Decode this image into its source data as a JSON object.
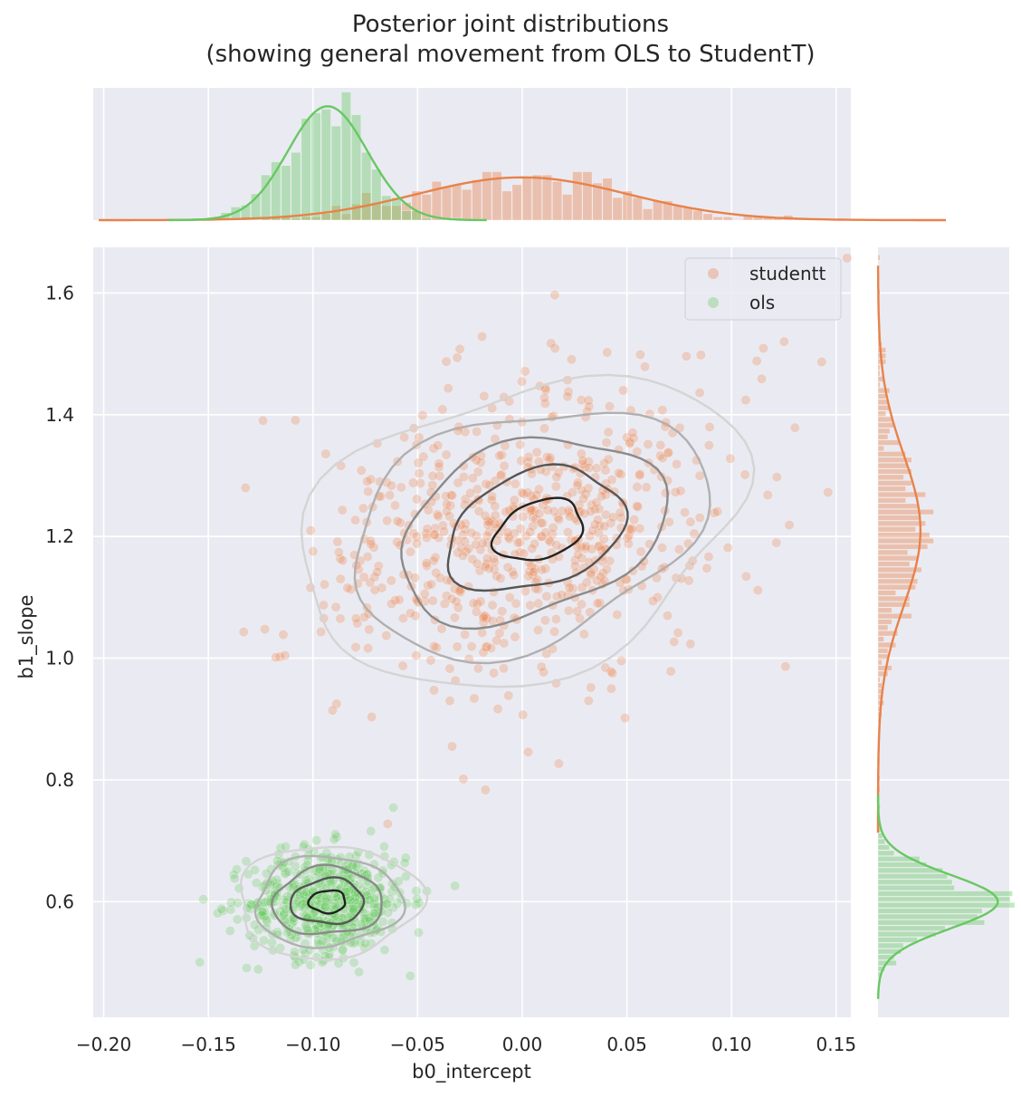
{
  "chart_data": {
    "type": "scatter",
    "title": "Posterior joint distributions\n(showing general movement from OLS to StudentT)",
    "xlabel": "b0_intercept",
    "ylabel": "b1_slope",
    "xlim": [
      -0.205,
      0.157
    ],
    "ylim": [
      0.41,
      1.675
    ],
    "xticks": [
      -0.2,
      -0.15,
      -0.1,
      -0.05,
      0.0,
      0.05,
      0.1,
      0.15
    ],
    "xtick_labels": [
      "−0.20",
      "−0.15",
      "−0.10",
      "−0.05",
      "0.00",
      "0.05",
      "0.10",
      "0.15"
    ],
    "yticks": [
      0.6,
      0.8,
      1.0,
      1.2,
      1.4,
      1.6
    ],
    "ytick_labels": [
      "0.6",
      "0.8",
      "1.0",
      "1.2",
      "1.4",
      "1.6"
    ],
    "grid": true,
    "legend_position": "top-right",
    "marginals": "histogram with kde on top (x) and right (y)",
    "series": [
      {
        "name": "studentt",
        "color": "#e8824a",
        "x_mean": 0.0,
        "x_sd": 0.046,
        "y_mean": 1.21,
        "y_sd": 0.115,
        "n_points": 700,
        "contour_levels": 5
      },
      {
        "name": "ols",
        "color": "#67c862",
        "x_mean": -0.093,
        "x_sd": 0.019,
        "y_mean": 0.6,
        "y_sd": 0.044,
        "n_points": 600,
        "contour_levels": 5
      }
    ]
  }
}
